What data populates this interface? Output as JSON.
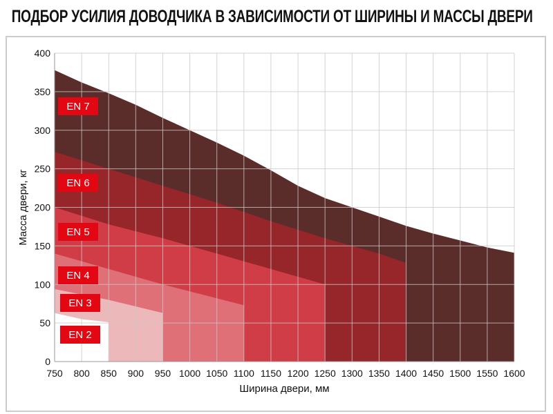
{
  "chart_data": {
    "type": "area",
    "title": "ПОДБОР УСИЛИЯ ДОВОДЧИКА В ЗАВИСИМОСТИ ОТ ШИРИНЫ И МАССЫ ДВЕРИ",
    "xlabel": "Ширина двери, мм",
    "ylabel": "Масса двери, кг",
    "xlim": [
      750,
      1600
    ],
    "ylim": [
      0,
      400
    ],
    "xticks": [
      750,
      800,
      850,
      900,
      950,
      1000,
      1050,
      1100,
      1150,
      1200,
      1250,
      1300,
      1350,
      1400,
      1450,
      1500,
      1550,
      1600
    ],
    "yticks": [
      0,
      50,
      100,
      150,
      200,
      250,
      300,
      350,
      400
    ],
    "grid": true,
    "label_color": "#e30613",
    "series": [
      {
        "name": "EN 7",
        "color": "#5a2c2a",
        "x": [
          750,
          800,
          850,
          900,
          950,
          1000,
          1050,
          1100,
          1150,
          1200,
          1250,
          1300,
          1350,
          1400,
          1450,
          1500,
          1550,
          1600
        ],
        "y": [
          378,
          362,
          348,
          333,
          316,
          300,
          284,
          267,
          248,
          228,
          212,
          200,
          188,
          176,
          166,
          157,
          148,
          141
        ]
      },
      {
        "name": "EN 6",
        "color": "#962629",
        "x": [
          750,
          850,
          950,
          1050,
          1150,
          1250,
          1350,
          1400
        ],
        "y": [
          272,
          250,
          228,
          206,
          182,
          160,
          140,
          128
        ]
      },
      {
        "name": "EN 5",
        "color": "#d03d47",
        "x": [
          750,
          850,
          950,
          1050,
          1150,
          1250
        ],
        "y": [
          200,
          178,
          160,
          140,
          120,
          100
        ]
      },
      {
        "name": "EN 4",
        "color": "#e07078",
        "x": [
          750,
          850,
          950,
          1100
        ],
        "y": [
          140,
          120,
          100,
          73
        ]
      },
      {
        "name": "EN 3",
        "color": "#ecb8b9",
        "x": [
          750,
          850,
          950
        ],
        "y": [
          94,
          80,
          63
        ]
      },
      {
        "name": "EN 2",
        "color": "#ffffff",
        "x": [
          750,
          800,
          850
        ],
        "y": [
          63,
          55,
          51
        ]
      }
    ]
  }
}
